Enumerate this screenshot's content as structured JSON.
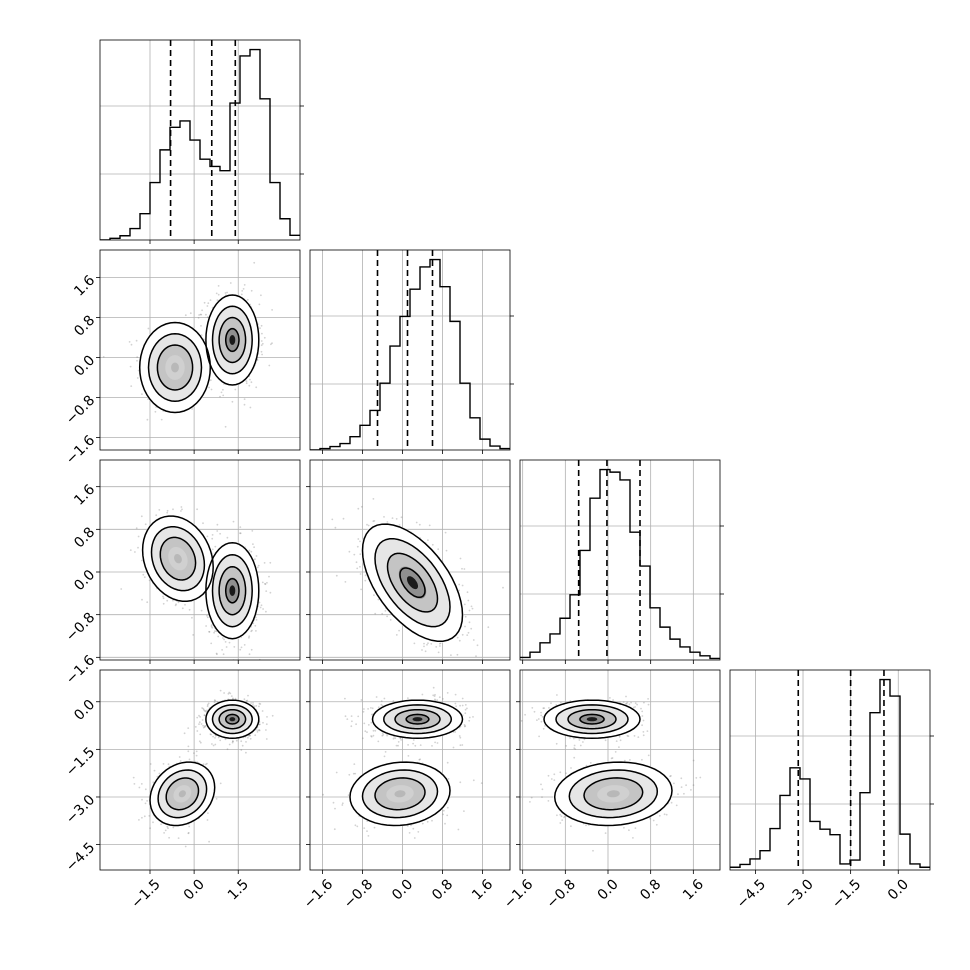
{
  "chart_data": {
    "type": "corner",
    "grid": true,
    "n_params": 4,
    "params": [
      {
        "index": 0,
        "range": [
          -3.2,
          3.6
        ],
        "ticks": [
          "−1.5",
          "0.0",
          "1.5"
        ],
        "tick_values": [
          -1.5,
          0.0,
          1.5
        ]
      },
      {
        "index": 1,
        "range": [
          -1.85,
          2.15
        ],
        "ticks": [
          "−1.6",
          "−0.8",
          "0.0",
          "0.8",
          "1.6"
        ],
        "tick_values": [
          -1.6,
          -0.8,
          0.0,
          0.8,
          1.6
        ]
      },
      {
        "index": 2,
        "range": [
          -1.65,
          2.1
        ],
        "ticks": [
          "−1.6",
          "−0.8",
          "0.0",
          "0.8",
          "1.6"
        ],
        "tick_values": [
          -1.6,
          -0.8,
          0.0,
          0.8,
          1.6
        ]
      },
      {
        "index": 3,
        "range": [
          -5.3,
          1.0
        ],
        "ticks": [
          "−4.5",
          "−3.0",
          "−1.5",
          "0.0"
        ],
        "tick_values": [
          -4.5,
          -3.0,
          -1.5,
          0.0
        ]
      }
    ],
    "histograms": [
      {
        "param": 0,
        "edges_start": -3.2,
        "bin_width": 0.34,
        "counts": [
          0,
          0.4,
          1,
          2.7,
          6.2,
          13.5,
          21.2,
          26.5,
          28,
          23.5,
          19,
          17.3,
          16.3,
          32.2,
          43.3,
          44.8,
          33.2,
          13.5,
          5,
          1.1
        ],
        "quantiles": [
          -0.8,
          0.6,
          1.4
        ]
      },
      {
        "param": 1,
        "edges_start": -1.85,
        "bin_width": 0.2,
        "counts": [
          0,
          0.3,
          0.7,
          1.3,
          2.7,
          5,
          8,
          13.5,
          21,
          27,
          32.5,
          37,
          38.5,
          33,
          26,
          13.5,
          6.5,
          2.2,
          0.8,
          0.3
        ],
        "quantiles": [
          -0.5,
          0.1,
          0.6
        ]
      },
      {
        "param": 2,
        "edges_start": -1.65,
        "bin_width": 0.1875,
        "counts": [
          0.5,
          1.5,
          3.3,
          5,
          8,
          12.5,
          21,
          31,
          36.5,
          36,
          34.5,
          24.5,
          18,
          10,
          6.3,
          4,
          2.5,
          1.5,
          0.8,
          0.3
        ],
        "quantiles": [
          -0.55,
          -0.02,
          0.6
        ]
      },
      {
        "param": 3,
        "edges_start": -5.3,
        "bin_width": 0.315,
        "counts": [
          0.5,
          1,
          2,
          3.5,
          7.5,
          13.5,
          18.5,
          16.5,
          8.8,
          7.4,
          6.4,
          1.1,
          1.8,
          14,
          28.5,
          34.5,
          31.5,
          6.5,
          1.1,
          0.5
        ],
        "quantiles": [
          -3.15,
          -1.5,
          -0.45
        ]
      }
    ],
    "panels_2d": [
      {
        "x_param": 0,
        "y_param": 1,
        "modes": [
          {
            "cx": -0.65,
            "cy": -0.2,
            "sx": 0.6,
            "sy": 0.45,
            "rho": 0.0,
            "density": 0.5
          },
          {
            "cx": 1.3,
            "cy": 0.35,
            "sx": 0.45,
            "sy": 0.45,
            "rho": 0.0,
            "density": 1.0
          }
        ]
      },
      {
        "x_param": 0,
        "y_param": 2,
        "modes": [
          {
            "cx": -0.55,
            "cy": 0.25,
            "sx": 0.6,
            "sy": 0.4,
            "rho": -0.2,
            "density": 0.5
          },
          {
            "cx": 1.3,
            "cy": -0.35,
            "sx": 0.45,
            "sy": 0.45,
            "rho": 0.0,
            "density": 1.0
          }
        ]
      },
      {
        "x_param": 1,
        "y_param": 2,
        "modes": [
          {
            "cx": 0.2,
            "cy": -0.2,
            "sx": 0.5,
            "sy": 0.55,
            "rho": -0.55,
            "density": 1.0
          }
        ]
      },
      {
        "x_param": 0,
        "y_param": 3,
        "modes": [
          {
            "cx": -0.4,
            "cy": -2.9,
            "sx": 0.55,
            "sy": 0.5,
            "rho": 0.2,
            "density": 0.55
          },
          {
            "cx": 1.3,
            "cy": -0.55,
            "sx": 0.45,
            "sy": 0.3,
            "rho": 0.0,
            "density": 1.0
          }
        ]
      },
      {
        "x_param": 1,
        "y_param": 3,
        "modes": [
          {
            "cx": -0.05,
            "cy": -2.9,
            "sx": 0.5,
            "sy": 0.5,
            "rho": 0.1,
            "density": 0.55
          },
          {
            "cx": 0.3,
            "cy": -0.55,
            "sx": 0.45,
            "sy": 0.3,
            "rho": 0.0,
            "density": 1.0
          }
        ]
      },
      {
        "x_param": 2,
        "y_param": 3,
        "modes": [
          {
            "cx": 0.1,
            "cy": -2.9,
            "sx": 0.55,
            "sy": 0.5,
            "rho": 0.1,
            "density": 0.55
          },
          {
            "cx": -0.3,
            "cy": -0.55,
            "sx": 0.45,
            "sy": 0.3,
            "rho": 0.0,
            "density": 1.0
          }
        ]
      }
    ],
    "contour_levels_sigma": [
      0.5,
      1.0,
      1.5,
      2.0
    ],
    "title": "",
    "xlabel": "",
    "ylabel": ""
  },
  "colors": {
    "points": "#7f7f7f",
    "line": "#000000",
    "grid": "#b0b0b0"
  }
}
